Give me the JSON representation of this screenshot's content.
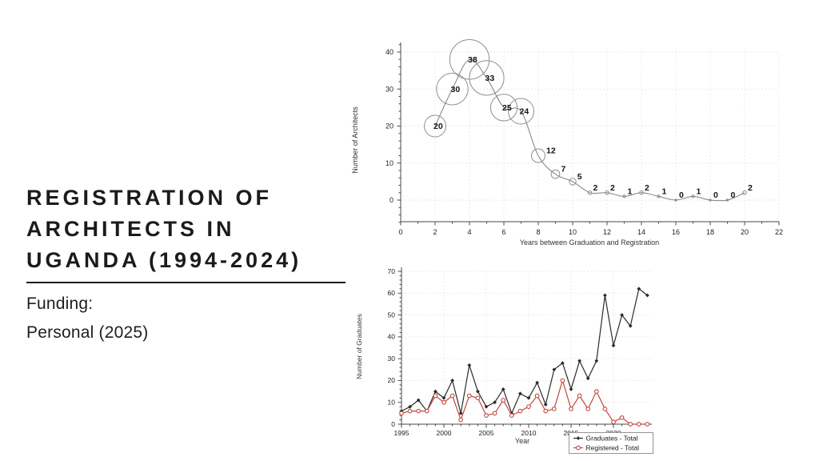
{
  "slide": {
    "title_lines": [
      "REGISTRATION OF",
      "ARCHITECTS IN",
      "UGANDA (1994-2024)"
    ],
    "funding_label": "Funding:",
    "funding_value": "Personal (2025)"
  },
  "colors": {
    "graduates_series": "#2b2b2b",
    "registered_series": "#c0483e",
    "bubble_outline": "#8f8f8f",
    "trend_curve": "#7e7e7e",
    "grid": "#e2e2e2",
    "axis": "#4a4a4a",
    "tick_text": "#222222"
  },
  "chart_data": [
    {
      "id": "architects-by-lag-bubble",
      "type": "scatter",
      "title": "",
      "xlabel": "Years between Graduation and Registration",
      "ylabel": "Number of Architects",
      "x": [
        2,
        3,
        4,
        5,
        6,
        7,
        8,
        9,
        10,
        11,
        12,
        13,
        14,
        15,
        16,
        17,
        18,
        19,
        20
      ],
      "values": [
        20,
        30,
        38,
        33,
        25,
        24,
        12,
        7,
        5,
        2,
        2,
        1,
        2,
        1,
        0,
        1,
        0,
        0,
        2
      ],
      "point_labels": [
        "20",
        "30",
        "38",
        "33",
        "25",
        "24",
        "12",
        "7",
        "5",
        "2",
        "2",
        "1",
        "2",
        "1",
        "0",
        "1",
        "0",
        "0",
        "2"
      ],
      "xticks": [
        0,
        2,
        4,
        6,
        8,
        10,
        12,
        14,
        16,
        18,
        20,
        22
      ],
      "yticks": [
        0,
        10,
        20,
        30,
        40
      ],
      "xlim": [
        0,
        22
      ],
      "ylim": [
        0,
        40
      ],
      "grid": true,
      "bubble_size": "proportional to value",
      "trend_line": true
    },
    {
      "id": "graduates-vs-registered-line",
      "type": "line",
      "title": "",
      "xlabel": "Year",
      "ylabel": "Number of Graduates",
      "x": [
        1995,
        1996,
        1997,
        1998,
        1999,
        2000,
        2001,
        2002,
        2003,
        2004,
        2005,
        2006,
        2007,
        2008,
        2009,
        2010,
        2011,
        2012,
        2013,
        2014,
        2015,
        2016,
        2017,
        2018,
        2019,
        2020,
        2021,
        2022,
        2023,
        2024
      ],
      "series": [
        {
          "name": "Graduates - Total",
          "color": "#2b2b2b",
          "marker": "diamond-filled",
          "values": [
            6,
            8,
            11,
            6,
            15,
            12,
            20,
            5,
            27,
            15,
            8,
            10,
            16,
            5,
            14,
            12,
            19,
            9,
            25,
            28,
            16,
            29,
            21,
            29,
            59,
            36,
            50,
            45,
            62,
            59
          ]
        },
        {
          "name": "Registered - Total",
          "color": "#c0483e",
          "marker": "circle-open",
          "values": [
            5,
            6,
            6,
            6,
            13,
            10,
            13,
            2,
            13,
            12,
            4,
            5,
            11,
            4,
            6,
            8,
            13,
            6,
            7,
            20,
            7,
            13,
            7,
            15,
            7,
            1,
            3,
            0,
            0,
            0
          ]
        }
      ],
      "xticks": [
        1995,
        2000,
        2005,
        2010,
        2015,
        2020
      ],
      "yticks": [
        0,
        10,
        20,
        30,
        40,
        50,
        60,
        70
      ],
      "ylim": [
        0,
        70
      ],
      "grid": true,
      "legend_position": "bottom"
    }
  ]
}
